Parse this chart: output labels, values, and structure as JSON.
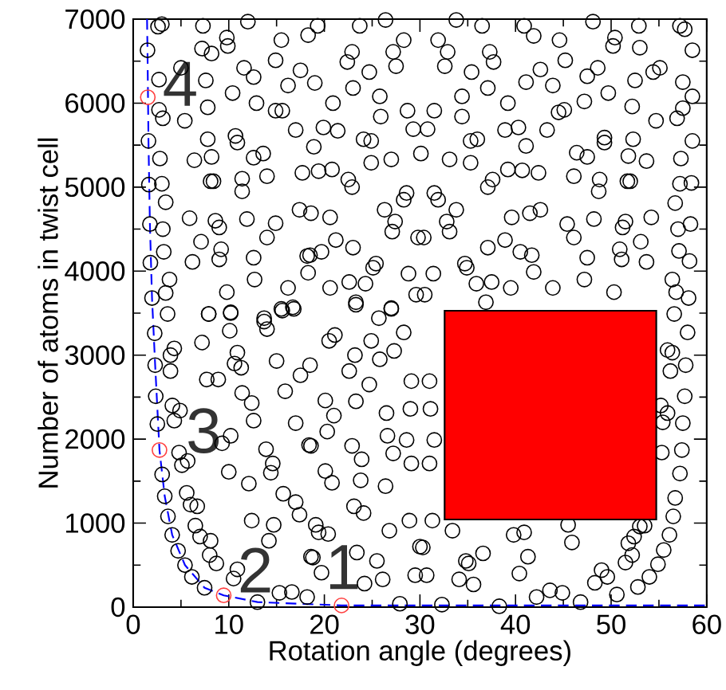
{
  "chart_data": {
    "type": "scatter",
    "xlabel": "Rotation angle (degrees)",
    "ylabel": "Number of atoms in twist cell",
    "xlim": [
      0,
      60
    ],
    "ylim": [
      0,
      7000
    ],
    "xticks": [
      0,
      10,
      20,
      30,
      40,
      50,
      60
    ],
    "yticks": [
      0,
      1000,
      2000,
      3000,
      4000,
      5000,
      6000,
      7000
    ],
    "series": [
      {
        "type": "scatter",
        "color": "#000000",
        "marker": "circle",
        "x": [
          1.5,
          1.6,
          1.64,
          1.75,
          1.8,
          1.97,
          2.25,
          2.3,
          2.36,
          2.53,
          3.03,
          3.3,
          3.64,
          4.08,
          4.7,
          5.42,
          6.14,
          7.47,
          13.0,
          27.9,
          32.3,
          38.3,
          2.6,
          3.0,
          7.3,
          9.8,
          12.0,
          9.9,
          7.2,
          8.2,
          5.0,
          11.6,
          12.6,
          14.9,
          15.5,
          17.5,
          16.2,
          10.4,
          7.6,
          12.9,
          14.9,
          15.6,
          17.0,
          7.8,
          5.4,
          2.7,
          2.7,
          3.1,
          10.7,
          10.9,
          7.8,
          12.6,
          13.6,
          8.2,
          6.4,
          2.8,
          17.7,
          14.0,
          11.4,
          8.1,
          8.4,
          3.0,
          11.4,
          3.4,
          17.4,
          5.9,
          8.6,
          9.0,
          11.9,
          14.9,
          14.0,
          3.1,
          7.1,
          9.2,
          3.2,
          9.0,
          6.2,
          12.6,
          18.2,
          3.8,
          12.7,
          16.2,
          3.4,
          9.8,
          15.5,
          16.7,
          7.9,
          10.2,
          13.7,
          19.3,
          18.3,
          23.7,
          26.4,
          33.8,
          36.5,
          28.3,
          31.9,
          22.9,
          22.4,
          27.2,
          27.5,
          32.9,
          32.6,
          37.3,
          37.7,
          24.7,
          35.4,
          19.0,
          23.0,
          25.8,
          37.1,
          34.4,
          20.9,
          28.7,
          31.5,
          25.9,
          34.4,
          19.9,
          21.4,
          29.3,
          30.8,
          18.9,
          24.1,
          24.9,
          35.3,
          36.0,
          30.1,
          27.0,
          24.9,
          33.1,
          35.3,
          19.4,
          20.8,
          22.5,
          22.9,
          28.6,
          28.3,
          31.5,
          31.9,
          37.1,
          37.6,
          26.3,
          18.6,
          20.6,
          33.8,
          27.4,
          27.1,
          32.8,
          33.1,
          29.8,
          30.4,
          21.2,
          23.0,
          18.5,
          19.7,
          37.1,
          25.4,
          25.1,
          34.7,
          34.9,
          18.3,
          28.8,
          31.4,
          22.6,
          24.3,
          35.9,
          37.5,
          20.6,
          23.3,
          29.6,
          30.5,
          27.0,
          36.9,
          40.9,
          41.9,
          44.6,
          48.1,
          50.4,
          50.2,
          52.9,
          53.0,
          57.2,
          57.7,
          58.5,
          45.2,
          42.6,
          47.5,
          48.6,
          54.4,
          55.1,
          43.9,
          41.1,
          52.5,
          57.5,
          58.5,
          49.7,
          39.2,
          44.5,
          45.1,
          47.2,
          52.2,
          54.7,
          56.9,
          57.5,
          38.9,
          40.3,
          43.3,
          41.1,
          49.3,
          49.3,
          52.3,
          46.4,
          47.5,
          51.8,
          53.7,
          57.3,
          58.5,
          39.2,
          40.7,
          42.4,
          46.1,
          48.8,
          48.7,
          51.7,
          52.0,
          57.2,
          58.4,
          56.7,
          39.6,
          41.5,
          42.6,
          45.4,
          46.1,
          48.2,
          51.2,
          51.5,
          54.2,
          57.0,
          58.3,
          38.9,
          40.5,
          41.7,
          47.5,
          50.9,
          51.1,
          53.1,
          53.7,
          57.1,
          58.2,
          41.9,
          47.2,
          39.5,
          43.9,
          50.3,
          56.4,
          56.8,
          58.1,
          3.6,
          7.9,
          10.2,
          10.1,
          7.2,
          3.9,
          4.3,
          7.7,
          8.9,
          3.9,
          10.9,
          10.6,
          11.3,
          13.7,
          14.0,
          15.6,
          16.8,
          15.0,
          17.5,
          15.9,
          11.4,
          12.4,
          12.6,
          4.1,
          4.9,
          4.3,
          9.3,
          10.2,
          13.9,
          14.6,
          14.4,
          4.8,
          5.1,
          5.7,
          10.0,
          12.1,
          17.0,
          18.6,
          5.6,
          6.0,
          6.7,
          15.7,
          17.0,
          17.4,
          12.4,
          14.7,
          14.2,
          6.5,
          7.0,
          8.1,
          8.0,
          8.7,
          10.9,
          10.5,
          18.6,
          15.3,
          16.6,
          23.3,
          27.0,
          25.7,
          21.1,
          20.5,
          24.9,
          28.3,
          23.2,
          22.6,
          25.8,
          27.3,
          18.5,
          24.7,
          29.1,
          31.0,
          20.1,
          23.3,
          21.0,
          26.5,
          29.0,
          31.1,
          20.3,
          26.6,
          28.6,
          31.5,
          18.4,
          22.9,
          27.2,
          23.9,
          29.1,
          31.0,
          20.1,
          20.8,
          23.8,
          26.4,
          23.1,
          24.1,
          28.9,
          31.3,
          26.8,
          19.1,
          19.4,
          20.4,
          33.4,
          30.0,
          30.3,
          23.4,
          25.5,
          18.8,
          19.7,
          29.5,
          30.7,
          34.8,
          35.1,
          36.6,
          34.1,
          35.6,
          24.2,
          26.1,
          18.2,
          56.6,
          58.0,
          55.9,
          56.4,
          57.8,
          56.2,
          57.7,
          55.2,
          55.9,
          57.5,
          55.4,
          55.3,
          57.4,
          57.2,
          56.7,
          56.5,
          56.1,
          55.5,
          54.9,
          54.0,
          52.8,
          50.6,
          49.0,
          49.6,
          48.3,
          39.8,
          40.9,
          45.5,
          45.9,
          51.8,
          52.4,
          53.0,
          53.5,
          51.5,
          52.2,
          40.4,
          41.3,
          42.2,
          43.6,
          44.9,
          46.8
        ],
        "values": [
          6630,
          5550,
          5030,
          4560,
          4100,
          3680,
          3260,
          2880,
          2510,
          2180,
          1580,
          1320,
          1080,
          860,
          670,
          500,
          360,
          230,
          60,
          40,
          30,
          10,
          6910,
          6940,
          6920,
          6780,
          6970,
          6680,
          6650,
          6590,
          6420,
          6420,
          6310,
          6510,
          6750,
          6390,
          6210,
          6120,
          6270,
          6000,
          5910,
          5910,
          5680,
          5950,
          5790,
          6280,
          5920,
          5820,
          5610,
          5530,
          5570,
          5350,
          5400,
          5360,
          5320,
          5340,
          5170,
          5130,
          5100,
          5070,
          5070,
          5040,
          4950,
          4820,
          4730,
          4630,
          4600,
          4520,
          4620,
          4570,
          4400,
          4500,
          4350,
          4260,
          4230,
          4140,
          4110,
          4160,
          4180,
          3900,
          3900,
          3800,
          3740,
          3750,
          3550,
          3570,
          3490,
          3500,
          3440,
          6920,
          6810,
          6920,
          6990,
          6990,
          6920,
          6750,
          6750,
          6610,
          6490,
          6610,
          6440,
          6610,
          6440,
          6610,
          6490,
          6370,
          6370,
          6240,
          6180,
          6080,
          6180,
          6080,
          6000,
          5910,
          5910,
          5840,
          5840,
          5710,
          5670,
          5690,
          5690,
          5480,
          5570,
          5550,
          5550,
          5570,
          5400,
          5330,
          5290,
          5330,
          5290,
          5190,
          5210,
          5090,
          5000,
          4930,
          4850,
          4930,
          4850,
          5000,
          5090,
          4730,
          4690,
          4640,
          4730,
          4590,
          4470,
          4590,
          4470,
          4400,
          4400,
          4370,
          4280,
          4190,
          4230,
          4280,
          4090,
          4040,
          4090,
          4040,
          3980,
          3970,
          3970,
          3870,
          3850,
          3850,
          3870,
          3800,
          3630,
          3720,
          3720,
          3560,
          3630,
          6920,
          6800,
          6750,
          6970,
          6780,
          6680,
          6920,
          6660,
          6920,
          6880,
          6630,
          6510,
          6400,
          6320,
          6420,
          6370,
          6420,
          6210,
          6250,
          6270,
          6250,
          6080,
          6120,
          6000,
          5890,
          5920,
          6020,
          5960,
          5790,
          5820,
          5940,
          5680,
          5710,
          5680,
          5490,
          5590,
          5530,
          5570,
          5410,
          5360,
          5370,
          5310,
          5340,
          5550,
          5210,
          5200,
          5170,
          5130,
          5090,
          4950,
          5070,
          5070,
          5040,
          5050,
          4810,
          4640,
          4690,
          4730,
          4560,
          4400,
          4620,
          4520,
          4590,
          4640,
          4500,
          4560,
          4370,
          4230,
          4190,
          4160,
          4260,
          4140,
          4350,
          4110,
          4240,
          4120,
          3990,
          3900,
          3800,
          3800,
          3750,
          3900,
          3750,
          3680,
          3490,
          3490,
          3510,
          3290,
          3150,
          3000,
          3080,
          2710,
          2710,
          2810,
          3030,
          2900,
          2850,
          3400,
          3310,
          3530,
          3550,
          2930,
          2760,
          2570,
          2550,
          2430,
          2220,
          2400,
          2340,
          2220,
          1950,
          2040,
          1880,
          1710,
          1600,
          1840,
          1690,
          1740,
          1610,
          1470,
          2190,
          1920,
          1360,
          1220,
          1200,
          1350,
          1250,
          1100,
          1030,
          980,
          790,
          970,
          840,
          790,
          620,
          520,
          450,
          340,
          600,
          170,
          180,
          3600,
          3550,
          3440,
          3240,
          3170,
          3170,
          3270,
          3000,
          2810,
          2950,
          3050,
          2880,
          2650,
          2690,
          2690,
          2460,
          2450,
          2280,
          2310,
          2360,
          2360,
          2090,
          2040,
          1990,
          1990,
          1930,
          1920,
          1830,
          1760,
          1710,
          1710,
          1620,
          1480,
          1510,
          1440,
          1200,
          1120,
          1030,
          1030,
          910,
          980,
          890,
          870,
          910,
          720,
          710,
          650,
          550,
          590,
          410,
          380,
          380,
          550,
          520,
          640,
          330,
          270,
          280,
          330,
          120,
          3490,
          3270,
          3060,
          3030,
          2880,
          2810,
          2510,
          2400,
          2310,
          2190,
          2200,
          1840,
          1870,
          1590,
          1300,
          1080,
          860,
          680,
          510,
          360,
          240,
          150,
          440,
          360,
          290,
          860,
          890,
          980,
          770,
          760,
          840,
          960,
          970,
          530,
          620,
          400,
          600,
          120,
          200,
          170,
          60
        ]
      },
      {
        "type": "line",
        "color": "#0000ff",
        "marker": "none",
        "line_style": "dashed",
        "x": [
          1.45,
          1.5,
          1.6,
          1.75,
          1.97,
          2.3,
          2.75,
          3.3,
          4.08,
          5.42,
          7.47,
          9.47,
          13.0,
          21.8,
          30,
          40,
          50,
          60
        ],
        "values": [
          7000,
          6600,
          5550,
          4560,
          3680,
          2880,
          1870,
          1320,
          860,
          500,
          230,
          140,
          60,
          20,
          20,
          20,
          20,
          20
        ]
      },
      {
        "type": "scatter",
        "color": "#ff4040",
        "marker": "circle",
        "x": [
          1.53,
          2.75,
          9.47,
          21.8
        ],
        "values": [
          6070,
          1870,
          140,
          20
        ]
      }
    ],
    "annotations": [
      "1",
      "2",
      "3",
      "4"
    ]
  }
}
